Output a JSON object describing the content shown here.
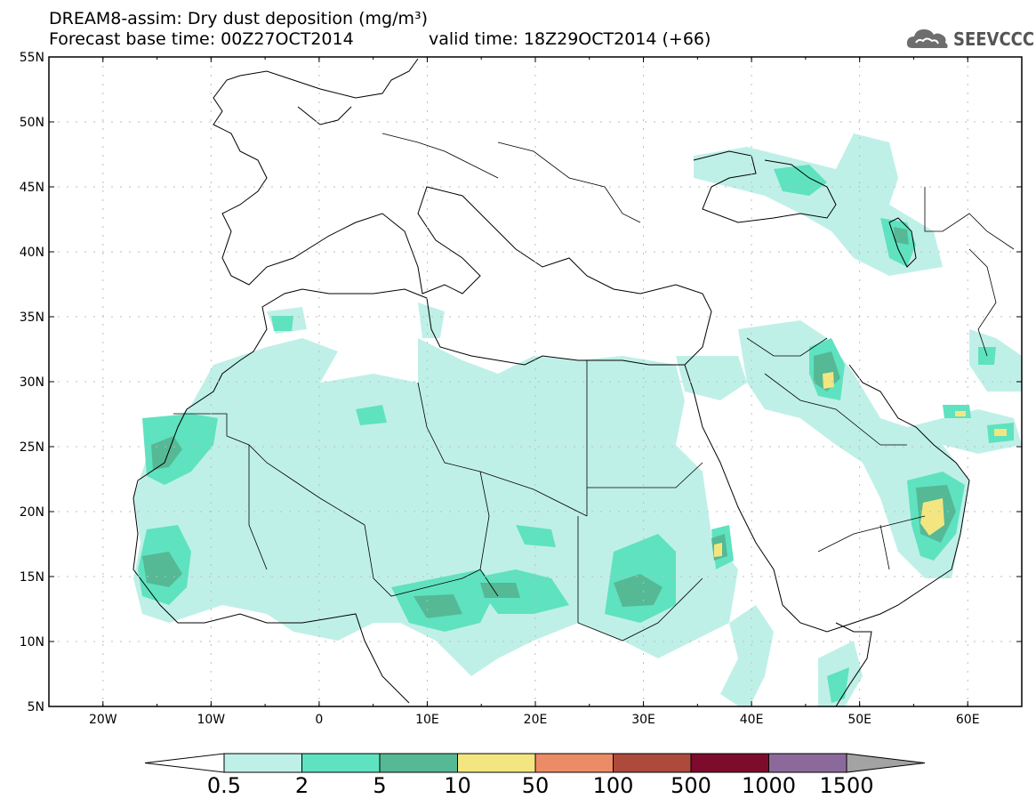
{
  "header": {
    "line1": "DREAM8-assim: Dry dust deposition (mg/m³)",
    "line2a": "Forecast base time: 00Z27OCT2014",
    "line2b": "valid time: 18Z29OCT2014 (+66)"
  },
  "logo": {
    "text": "SEEVCCC",
    "icon": "cloud-icon"
  },
  "map": {
    "lon_range": [
      -25,
      65
    ],
    "lat_range": [
      5,
      55
    ],
    "lat_ticks": [
      "55N",
      "50N",
      "45N",
      "40N",
      "35N",
      "30N",
      "25N",
      "20N",
      "15N",
      "10N",
      "5N"
    ],
    "lon_ticks": [
      "20W",
      "10W",
      "0",
      "10E",
      "20E",
      "30E",
      "40E",
      "50E",
      "60E"
    ]
  },
  "colorbar": {
    "labels": [
      "0.5",
      "2",
      "5",
      "10",
      "50",
      "100",
      "500",
      "1000",
      "1500"
    ],
    "colors": [
      "#bff0e8",
      "#5fe2bf",
      "#55b995",
      "#f3e680",
      "#eb8c66",
      "#ad4a3b",
      "#7d0c2c",
      "#8b6a9b",
      "#a3a3a3"
    ]
  },
  "colors": {
    "coast": "#000000",
    "border": "#000000",
    "frame": "#000000"
  }
}
